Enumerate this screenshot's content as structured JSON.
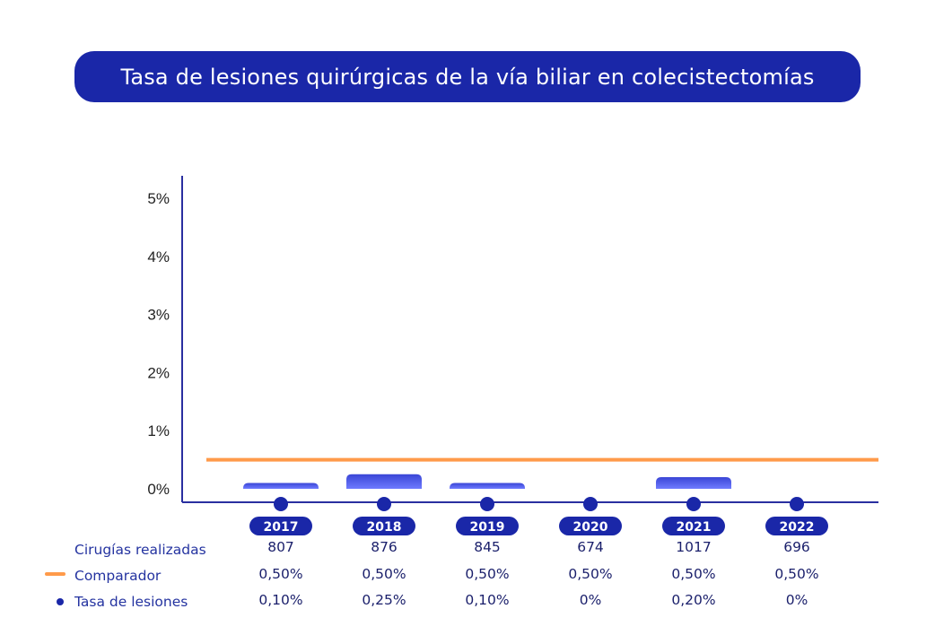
{
  "title": "Tasa de lesiones quirúrgicas de la vía biliar en colecistectomías",
  "colors": {
    "primary": "#1a27a8",
    "bar_top": "#3a46d6",
    "bar_bottom": "#6f7bff",
    "comparator": "#ff9a4a",
    "axis": "#2a2fa0",
    "dot": "#1a27a8"
  },
  "table": {
    "row_labels": {
      "surgeries": "Cirugías realizadas",
      "comparator": "Comparador",
      "rate": "Tasa de lesiones"
    },
    "years": [
      "2017",
      "2018",
      "2019",
      "2020",
      "2021",
      "2022"
    ],
    "surgeries": [
      "807",
      "876",
      "845",
      "674",
      "1017",
      "696"
    ],
    "comparator": [
      "0,50%",
      "0,50%",
      "0,50%",
      "0,50%",
      "0,50%",
      "0,50%"
    ],
    "rate": [
      "0,10%",
      "0,25%",
      "0,10%",
      "0%",
      "0,20%",
      "0%"
    ]
  },
  "chart_data": {
    "type": "bar",
    "categories": [
      "2017",
      "2018",
      "2019",
      "2020",
      "2021",
      "2022"
    ],
    "series": [
      {
        "name": "Tasa de lesiones",
        "values": [
          0.1,
          0.25,
          0.1,
          0,
          0.2,
          0
        ]
      },
      {
        "name": "Comparador",
        "values": [
          0.5,
          0.5,
          0.5,
          0.5,
          0.5,
          0.5
        ]
      }
    ],
    "surgeries": [
      807,
      876,
      845,
      674,
      1017,
      696
    ],
    "ylim": [
      0,
      5
    ],
    "yticks": [
      "0%",
      "1%",
      "2%",
      "3%",
      "4%",
      "5%"
    ],
    "title": "Tasa de lesiones quirúrgicas de la vía biliar en colecistectomías",
    "xlabel": "",
    "ylabel": "",
    "grid": false
  }
}
